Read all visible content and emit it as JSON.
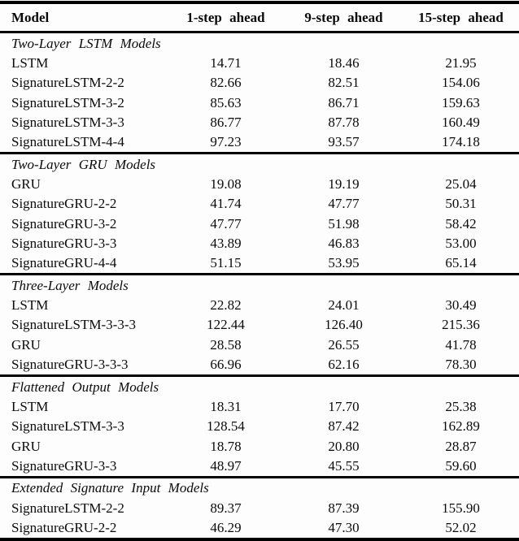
{
  "table": {
    "columns": [
      "Model",
      "1-step ahead",
      "9-step ahead",
      "15-step ahead"
    ],
    "sections": [
      {
        "title": "Two-Layer LSTM Models",
        "rows": [
          {
            "model": "LSTM",
            "values": [
              "14.71",
              "18.46",
              "21.95"
            ]
          },
          {
            "model": "SignatureLSTM-2-2",
            "values": [
              "82.66",
              "82.51",
              "154.06"
            ]
          },
          {
            "model": "SignatureLSTM-3-2",
            "values": [
              "85.63",
              "86.71",
              "159.63"
            ]
          },
          {
            "model": "SignatureLSTM-3-3",
            "values": [
              "86.77",
              "87.78",
              "160.49"
            ]
          },
          {
            "model": "SignatureLSTM-4-4",
            "values": [
              "97.23",
              "93.57",
              "174.18"
            ]
          }
        ]
      },
      {
        "title": "Two-Layer GRU Models",
        "rows": [
          {
            "model": "GRU",
            "values": [
              "19.08",
              "19.19",
              "25.04"
            ]
          },
          {
            "model": "SignatureGRU-2-2",
            "values": [
              "41.74",
              "47.77",
              "50.31"
            ]
          },
          {
            "model": "SignatureGRU-3-2",
            "values": [
              "47.77",
              "51.98",
              "58.42"
            ]
          },
          {
            "model": "SignatureGRU-3-3",
            "values": [
              "43.89",
              "46.83",
              "53.00"
            ]
          },
          {
            "model": "SignatureGRU-4-4",
            "values": [
              "51.15",
              "53.95",
              "65.14"
            ]
          }
        ]
      },
      {
        "title": "Three-Layer Models",
        "rows": [
          {
            "model": "LSTM",
            "values": [
              "22.82",
              "24.01",
              "30.49"
            ]
          },
          {
            "model": "SignatureLSTM-3-3-3",
            "values": [
              "122.44",
              "126.40",
              "215.36"
            ]
          },
          {
            "model": "GRU",
            "values": [
              "28.58",
              "26.55",
              "41.78"
            ]
          },
          {
            "model": "SignatureGRU-3-3-3",
            "values": [
              "66.96",
              "62.16",
              "78.30"
            ]
          }
        ]
      },
      {
        "title": "Flattened Output Models",
        "rows": [
          {
            "model": "LSTM",
            "values": [
              "18.31",
              "17.70",
              "25.38"
            ]
          },
          {
            "model": "SignatureLSTM-3-3",
            "values": [
              "128.54",
              "87.42",
              "162.89"
            ]
          },
          {
            "model": "GRU",
            "values": [
              "18.78",
              "20.80",
              "28.87"
            ]
          },
          {
            "model": "SignatureGRU-3-3",
            "values": [
              "48.97",
              "45.55",
              "59.60"
            ]
          }
        ]
      },
      {
        "title": "Extended Signature Input Models",
        "rows": [
          {
            "model": "SignatureLSTM-2-2",
            "values": [
              "89.37",
              "87.39",
              "155.90"
            ]
          },
          {
            "model": "SignatureGRU-2-2",
            "values": [
              "46.29",
              "47.30",
              "52.02"
            ]
          }
        ]
      }
    ]
  },
  "colors": {
    "text": "#0a0a0a",
    "background": "#fdfdfd",
    "rule": "#000000"
  }
}
